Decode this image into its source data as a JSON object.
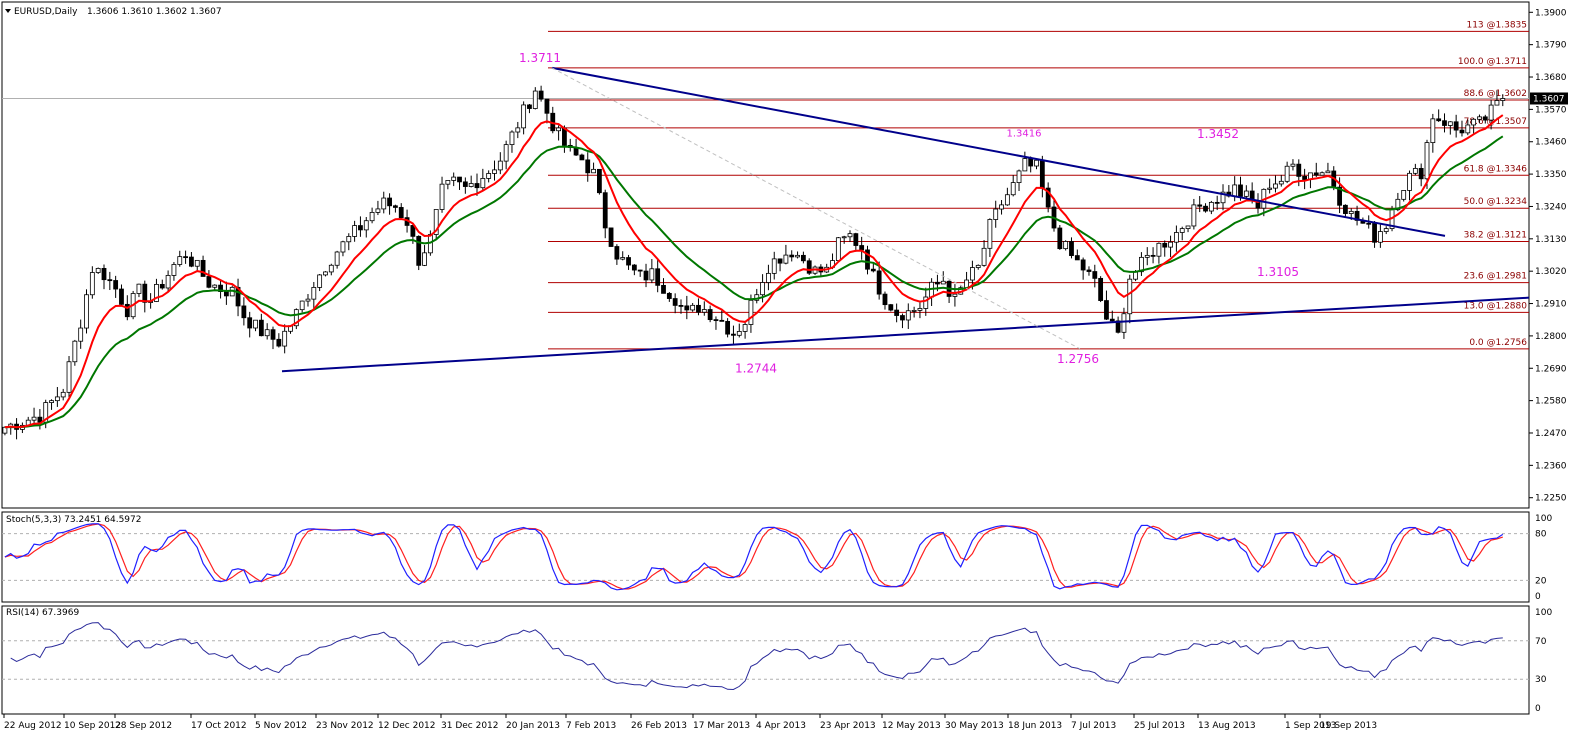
{
  "header": {
    "symbol": "EURUSD,Daily",
    "ohlc": "1.3606 1.3610 1.3602 1.3607"
  },
  "current_price": "1.3607",
  "colors": {
    "background": "#ffffff",
    "bull_candle": "#ffffff",
    "bear_candle": "#000000",
    "ma_fast": "#ff0000",
    "ma_slow": "#007700",
    "trendline": "#00008b",
    "fib_line": "#b00000",
    "annotation": "#e020e0",
    "stoch_main": "#2020ff",
    "stoch_signal": "#ff2020",
    "rsi_line": "#2b2b9b"
  },
  "chart_data": [
    {
      "type": "candlestick",
      "title": "EURUSD,Daily",
      "y_axis_ticks": [
        "1.3900",
        "1.3790",
        "1.3680",
        "1.3570",
        "1.3460",
        "1.3350",
        "1.3240",
        "1.3130",
        "1.3020",
        "1.2910",
        "1.2800",
        "1.2690",
        "1.2580",
        "1.2470",
        "1.2360",
        "1.2250"
      ],
      "ylim": [
        1.2215,
        1.3935
      ],
      "x_axis_ticks": [
        "22 Aug 2012",
        "10 Sep 2012",
        "28 Sep 2012",
        "17 Oct 2012",
        "5 Nov 2012",
        "23 Nov 2012",
        "12 Dec 2012",
        "31 Dec 2012",
        "20 Jan 2013",
        "7 Feb 2013",
        "26 Feb 2013",
        "17 Mar 2013",
        "4 Apr 2013",
        "23 Apr 2013",
        "12 May 2013",
        "30 May 2013",
        "18 Jun 2013",
        "7 Jul 2013",
        "25 Jul 2013",
        "13 Aug 2013",
        "1 Sep 2013",
        "19 Sep 2013"
      ],
      "fibonacci_levels": [
        {
          "label": "113 @1.3835",
          "value": 1.3835
        },
        {
          "label": "100.0 @1.3711",
          "value": 1.3711
        },
        {
          "label": "88.6 @1.3602",
          "value": 1.3602
        },
        {
          "label": "78.6 @1.3507",
          "value": 1.3507
        },
        {
          "label": "61.8 @1.3346",
          "value": 1.3346
        },
        {
          "label": "50.0 @1.3234",
          "value": 1.3234
        },
        {
          "label": "38.2 @1.3121",
          "value": 1.3121
        },
        {
          "label": "23.6 @1.2981",
          "value": 1.2981
        },
        {
          "label": "13.0 @1.2880",
          "value": 1.288
        },
        {
          "label": "0.0 @1.2756",
          "value": 1.2756
        }
      ],
      "annotations": [
        {
          "text": "1.3711",
          "date": "24 Jan 2013",
          "value": 1.3711
        },
        {
          "text": "1.3416",
          "date": "19 Jun 2013",
          "value": 1.3416
        },
        {
          "text": "1.3452",
          "date": "13 Aug 2013",
          "value": 1.3452
        },
        {
          "text": "1.3105",
          "date": "5 Sep 2013",
          "value": 1.3105
        },
        {
          "text": "1.2744",
          "date": "3 Apr 2013",
          "value": 1.2744
        },
        {
          "text": "1.2756",
          "date": "9 Jul 2013",
          "value": 1.2756
        }
      ],
      "price_path": [
        [
          0,
          1.249
        ],
        [
          6,
          1.253
        ],
        [
          10,
          1.262
        ],
        [
          13,
          1.285
        ],
        [
          15,
          1.303
        ],
        [
          17,
          1.301
        ],
        [
          19,
          1.296
        ],
        [
          21,
          1.289
        ],
        [
          23,
          1.295
        ],
        [
          25,
          1.292
        ],
        [
          27,
          1.298
        ],
        [
          29,
          1.304
        ],
        [
          31,
          1.308
        ],
        [
          33,
          1.303
        ],
        [
          35,
          1.298
        ],
        [
          37,
          1.296
        ],
        [
          39,
          1.295
        ],
        [
          41,
          1.287
        ],
        [
          43,
          1.283
        ],
        [
          45,
          1.28
        ],
        [
          47,
          1.278
        ],
        [
          49,
          1.284
        ],
        [
          51,
          1.291
        ],
        [
          53,
          1.298
        ],
        [
          55,
          1.304
        ],
        [
          57,
          1.309
        ],
        [
          59,
          1.313
        ],
        [
          61,
          1.317
        ],
        [
          63,
          1.322
        ],
        [
          65,
          1.325
        ],
        [
          67,
          1.324
        ],
        [
          69,
          1.319
        ],
        [
          71,
          1.306
        ],
        [
          73,
          1.313
        ],
        [
          75,
          1.329
        ],
        [
          77,
          1.332
        ],
        [
          79,
          1.33
        ],
        [
          81,
          1.333
        ],
        [
          83,
          1.336
        ],
        [
          85,
          1.34
        ],
        [
          87,
          1.348
        ],
        [
          89,
          1.356
        ],
        [
          91,
          1.364
        ],
        [
          93,
          1.356
        ],
        [
          95,
          1.348
        ],
        [
          97,
          1.342
        ],
        [
          99,
          1.34
        ],
        [
          101,
          1.335
        ],
        [
          103,
          1.318
        ],
        [
          105,
          1.308
        ],
        [
          107,
          1.303
        ],
        [
          109,
          1.3
        ],
        [
          111,
          1.301
        ],
        [
          113,
          1.297
        ],
        [
          115,
          1.293
        ],
        [
          117,
          1.287
        ],
        [
          119,
          1.29
        ],
        [
          121,
          1.288
        ],
        [
          123,
          1.285
        ],
        [
          125,
          1.281
        ],
        [
          127,
          1.285
        ],
        [
          129,
          1.296
        ],
        [
          131,
          1.304
        ],
        [
          133,
          1.307
        ],
        [
          135,
          1.309
        ],
        [
          137,
          1.306
        ],
        [
          139,
          1.302
        ],
        [
          141,
          1.302
        ],
        [
          143,
          1.311
        ],
        [
          145,
          1.314
        ],
        [
          147,
          1.31
        ],
        [
          149,
          1.3
        ],
        [
          151,
          1.293
        ],
        [
          153,
          1.288
        ],
        [
          155,
          1.288
        ],
        [
          157,
          1.29
        ],
        [
          159,
          1.296
        ],
        [
          161,
          1.299
        ],
        [
          163,
          1.292
        ],
        [
          165,
          1.299
        ],
        [
          167,
          1.303
        ],
        [
          169,
          1.317
        ],
        [
          171,
          1.325
        ],
        [
          173,
          1.331
        ],
        [
          175,
          1.338
        ],
        [
          177,
          1.337
        ],
        [
          179,
          1.322
        ],
        [
          181,
          1.312
        ],
        [
          183,
          1.307
        ],
        [
          185,
          1.303
        ],
        [
          187,
          1.298
        ],
        [
          189,
          1.286
        ],
        [
          191,
          1.28
        ],
        [
          193,
          1.3
        ],
        [
          195,
          1.304
        ],
        [
          197,
          1.309
        ],
        [
          199,
          1.312
        ],
        [
          201,
          1.315
        ],
        [
          203,
          1.32
        ],
        [
          205,
          1.324
        ],
        [
          207,
          1.326
        ],
        [
          209,
          1.328
        ],
        [
          211,
          1.33
        ],
        [
          213,
          1.327
        ],
        [
          215,
          1.324
        ],
        [
          217,
          1.332
        ],
        [
          219,
          1.333
        ],
        [
          221,
          1.338
        ],
        [
          223,
          1.335
        ],
        [
          225,
          1.336
        ],
        [
          227,
          1.336
        ],
        [
          229,
          1.327
        ],
        [
          231,
          1.321
        ],
        [
          233,
          1.318
        ],
        [
          235,
          1.314
        ],
        [
          237,
          1.318
        ],
        [
          239,
          1.329
        ],
        [
          241,
          1.334
        ],
        [
          243,
          1.336
        ],
        [
          245,
          1.355
        ],
        [
          247,
          1.353
        ],
        [
          249,
          1.35
        ],
        [
          251,
          1.351
        ],
        [
          253,
          1.352
        ],
        [
          255,
          1.356
        ],
        [
          257,
          1.3607
        ]
      ]
    },
    {
      "type": "line",
      "title": "Stoch(5,3,3) 73.2451 64.5972",
      "y_axis_ticks": [
        "100",
        "80",
        "20",
        "0"
      ],
      "ylim": [
        0,
        100
      ]
    },
    {
      "type": "line",
      "title": "RSI(14) 67.3969",
      "y_axis_ticks": [
        "100",
        "70",
        "30",
        "0"
      ],
      "ylim": [
        0,
        100
      ]
    }
  ]
}
